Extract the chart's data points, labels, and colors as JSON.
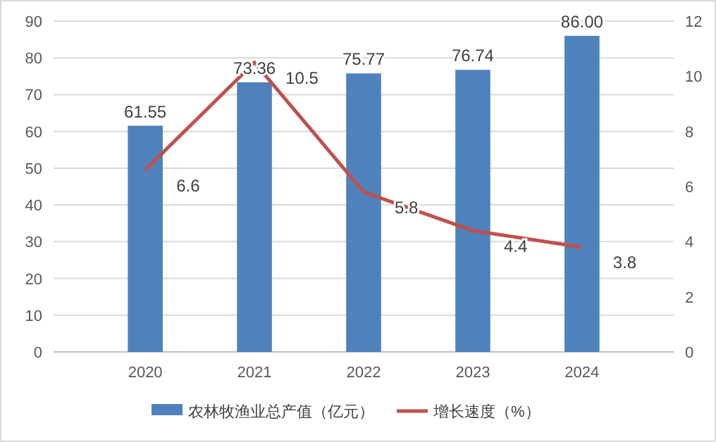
{
  "chart_data": {
    "type": "bar",
    "categories": [
      "2020",
      "2021",
      "2022",
      "2023",
      "2024"
    ],
    "series": [
      {
        "name": "农林牧渔业总产值（亿元）",
        "color": "#4f81bd",
        "values": [
          61.55,
          73.36,
          75.77,
          76.74,
          86.0
        ],
        "value_labels": [
          "61.55",
          "73.36",
          "75.77",
          "76.74",
          "86.00"
        ]
      },
      {
        "name": "增长速度（%）",
        "type": "line",
        "axis": "y2",
        "color": "#c0504d",
        "values": [
          6.6,
          10.5,
          5.8,
          4.4,
          3.8
        ],
        "value_labels": [
          "6.6",
          "10.5",
          "5.8",
          "4.4",
          "3.8"
        ]
      }
    ],
    "ylim": [
      0,
      90
    ],
    "yticks": [
      0,
      10,
      20,
      30,
      40,
      50,
      60,
      70,
      80,
      90
    ],
    "y2lim": [
      0,
      12
    ],
    "y2ticks": [
      0,
      2,
      4,
      6,
      8,
      10,
      12
    ],
    "grid": "y",
    "legend": "bottom",
    "marker": "none",
    "line_style": "solid"
  }
}
